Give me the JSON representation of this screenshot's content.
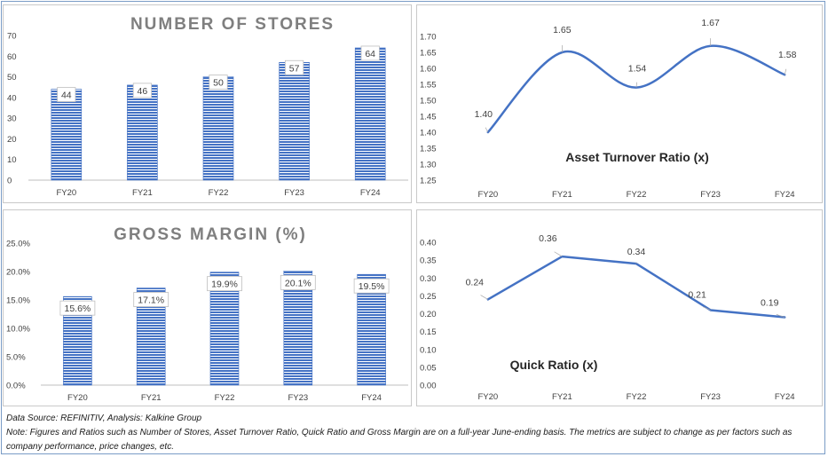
{
  "stores_chart": {
    "type": "bar",
    "title": "NUMBER OF STORES",
    "categories": [
      "FY20",
      "FY21",
      "FY22",
      "FY23",
      "FY24"
    ],
    "values": [
      44,
      46,
      50,
      57,
      64
    ],
    "value_labels": [
      "44",
      "46",
      "50",
      "57",
      "64"
    ],
    "ylim": [
      0,
      70
    ],
    "yticks": [
      "0",
      "10",
      "20",
      "30",
      "40",
      "50",
      "60",
      "70"
    ],
    "bar_color": "#4472c4",
    "grid": false
  },
  "asset_chart": {
    "type": "line",
    "title": "Asset Turnover Ratio (x)",
    "categories": [
      "FY20",
      "FY21",
      "FY22",
      "FY23",
      "FY24"
    ],
    "values": [
      1.4,
      1.65,
      1.54,
      1.67,
      1.58
    ],
    "value_labels": [
      "1.40",
      "1.65",
      "1.54",
      "1.67",
      "1.58"
    ],
    "ylim": [
      1.25,
      1.7
    ],
    "yticks": [
      "1.25",
      "1.30",
      "1.35",
      "1.40",
      "1.45",
      "1.50",
      "1.55",
      "1.60",
      "1.65",
      "1.70"
    ],
    "line_color": "#4472c4",
    "smooth": true,
    "grid": false
  },
  "margin_chart": {
    "type": "bar",
    "title": "GROSS MARGIN (%)",
    "categories": [
      "FY20",
      "FY21",
      "FY22",
      "FY23",
      "FY24"
    ],
    "values": [
      15.6,
      17.1,
      19.9,
      20.1,
      19.5
    ],
    "value_labels": [
      "15.6%",
      "17.1%",
      "19.9%",
      "20.1%",
      "19.5%"
    ],
    "ylim": [
      0,
      25
    ],
    "yticks": [
      "0.0%",
      "5.0%",
      "10.0%",
      "15.0%",
      "20.0%",
      "25.0%"
    ],
    "bar_color": "#4472c4",
    "grid": false
  },
  "quick_chart": {
    "type": "line",
    "title": "Quick Ratio (x)",
    "categories": [
      "FY20",
      "FY21",
      "FY22",
      "FY23",
      "FY24"
    ],
    "values": [
      0.24,
      0.36,
      0.34,
      0.21,
      0.19
    ],
    "value_labels": [
      "0.24",
      "0.36",
      "0.34",
      "0.21",
      "0.19"
    ],
    "ylim": [
      0,
      0.4
    ],
    "yticks": [
      "0.00",
      "0.05",
      "0.10",
      "0.15",
      "0.20",
      "0.25",
      "0.30",
      "0.35",
      "0.40"
    ],
    "line_color": "#4472c4",
    "smooth": false,
    "grid": false
  },
  "footer": {
    "source": "Data Source: REFINITIV, Analysis: Kalkine Group",
    "note": "Note: Figures and Ratios such as Number of Stores, Asset Turnover Ratio, Quick Ratio and Gross Margin are on a full-year June-ending basis. The metrics are subject to change as per factors such as company performance, price changes, etc."
  }
}
